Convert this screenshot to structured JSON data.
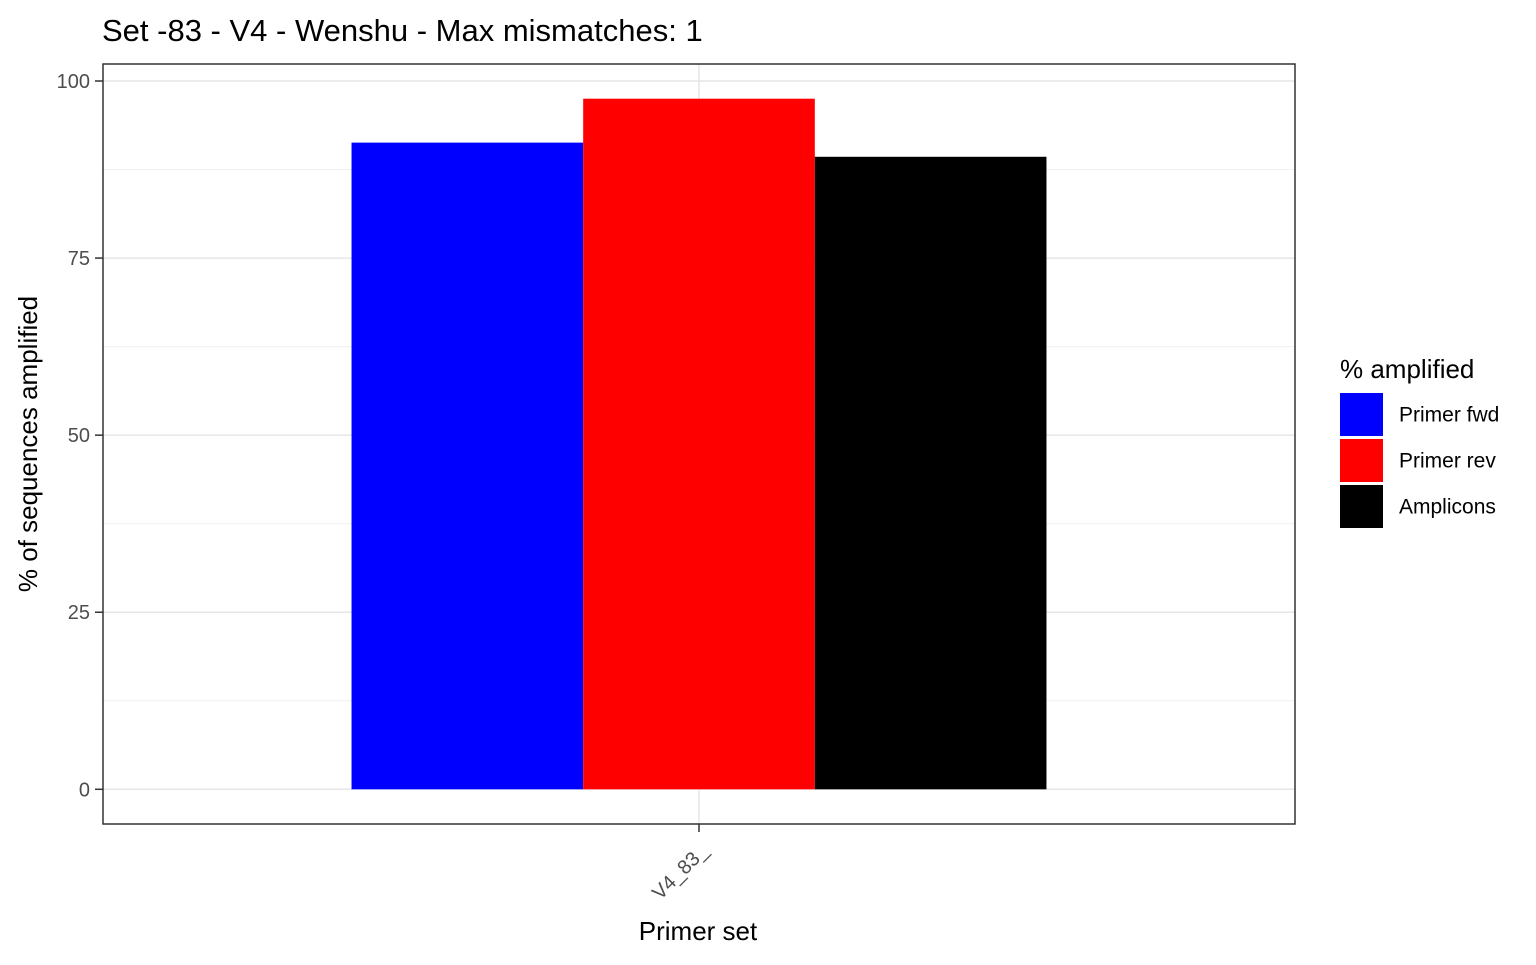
{
  "chart_data": {
    "type": "bar",
    "title": "Set -83 - V4 - Wenshu - Max mismatches: 1",
    "xlabel": "Primer set",
    "ylabel": "% of sequences amplified",
    "categories": [
      "V4_83_"
    ],
    "series": [
      {
        "name": "Primer fwd",
        "values": [
          91.3
        ],
        "color": "#0000FF"
      },
      {
        "name": "Primer rev",
        "values": [
          97.5
        ],
        "color": "#FF0000"
      },
      {
        "name": "Amplicons",
        "values": [
          89.3
        ],
        "color": "#000000"
      }
    ],
    "ylim": [
      -4.9,
      102.4
    ],
    "yticks": [
      0,
      25,
      50,
      75,
      100
    ],
    "ytick_labels": [
      "0",
      "25",
      "50",
      "75",
      "100"
    ],
    "grid": true,
    "legend": {
      "title": "% amplified",
      "position": "right"
    },
    "x_tick_rotation": "45"
  }
}
